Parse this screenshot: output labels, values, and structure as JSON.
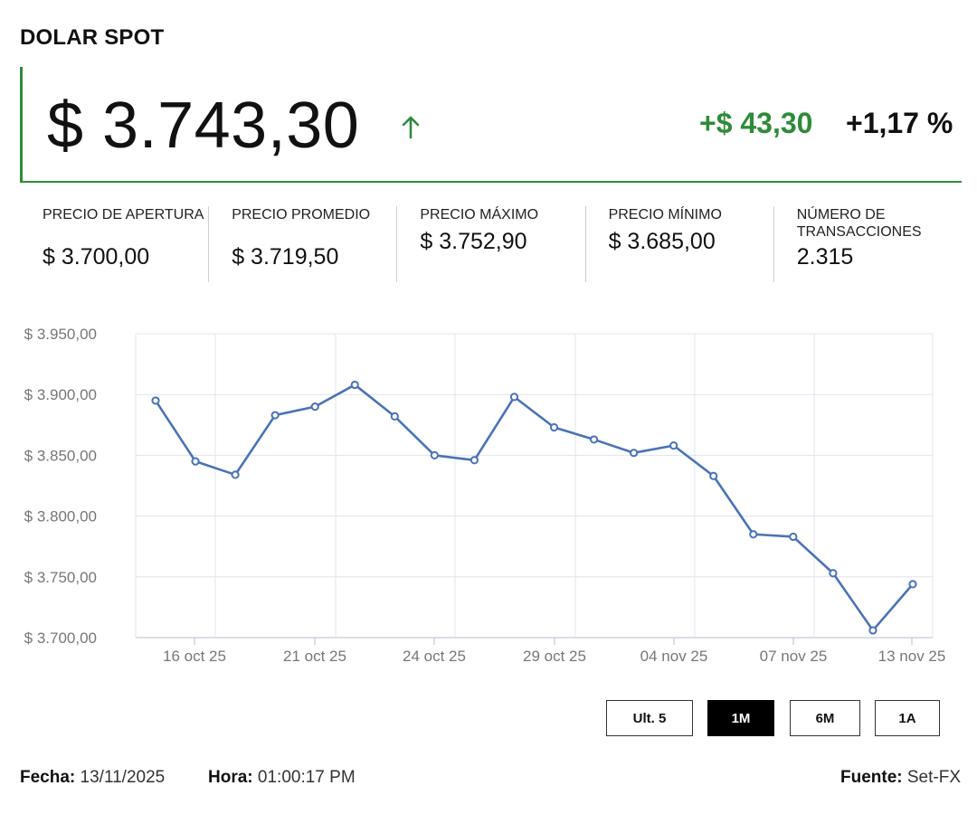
{
  "title": "DOLAR SPOT",
  "price": "$ 3.743,30",
  "change_abs": "+$ 43,30",
  "change_pct": "+1,17 %",
  "colors": {
    "up": "#2e8b3a",
    "line": "#4a72b8",
    "grid": "#e0e4ec"
  },
  "icons": {
    "trend": "arrow-up-icon"
  },
  "stats": [
    {
      "label": "PRECIO DE APERTURA",
      "value": "$ 3.700,00"
    },
    {
      "label": "PRECIO PROMEDIO",
      "value": "$ 3.719,50"
    },
    {
      "label": "PRECIO MÁXIMO",
      "value": "$ 3.752,90"
    },
    {
      "label": "PRECIO MÍNIMO",
      "value": "$ 3.685,00"
    },
    {
      "label": "NÚMERO DE TRANSACCIONES",
      "value": "2.315"
    }
  ],
  "chart_data": {
    "type": "line",
    "ylim": [
      3700,
      3950
    ],
    "yticks": [
      "$ 3.950,00",
      "$ 3.900,00",
      "$ 3.850,00",
      "$ 3.800,00",
      "$ 3.750,00",
      "$ 3.700,00"
    ],
    "xticks": [
      "16 oct 25",
      "21 oct 25",
      "24 oct 25",
      "29 oct 25",
      "04 nov 25",
      "07 nov 25",
      "13 nov 25"
    ],
    "grid": true,
    "series": [
      {
        "values": [
          3895,
          3845,
          3834,
          3883,
          3890,
          3908,
          3882,
          3850,
          3846,
          3898,
          3873,
          3863,
          3852,
          3858,
          3833,
          3785,
          3783,
          3753,
          3706,
          3744
        ]
      }
    ]
  },
  "ranges": [
    {
      "label": "Ult. 5",
      "active": false
    },
    {
      "label": "1M",
      "active": true
    },
    {
      "label": "6M",
      "active": false
    },
    {
      "label": "1A",
      "active": false
    }
  ],
  "footer": {
    "fecha_label": "Fecha:",
    "fecha_value": "13/11/2025",
    "hora_label": "Hora:",
    "hora_value": "01:00:17 PM",
    "fuente_label": "Fuente:",
    "fuente_value": "Set-FX"
  }
}
